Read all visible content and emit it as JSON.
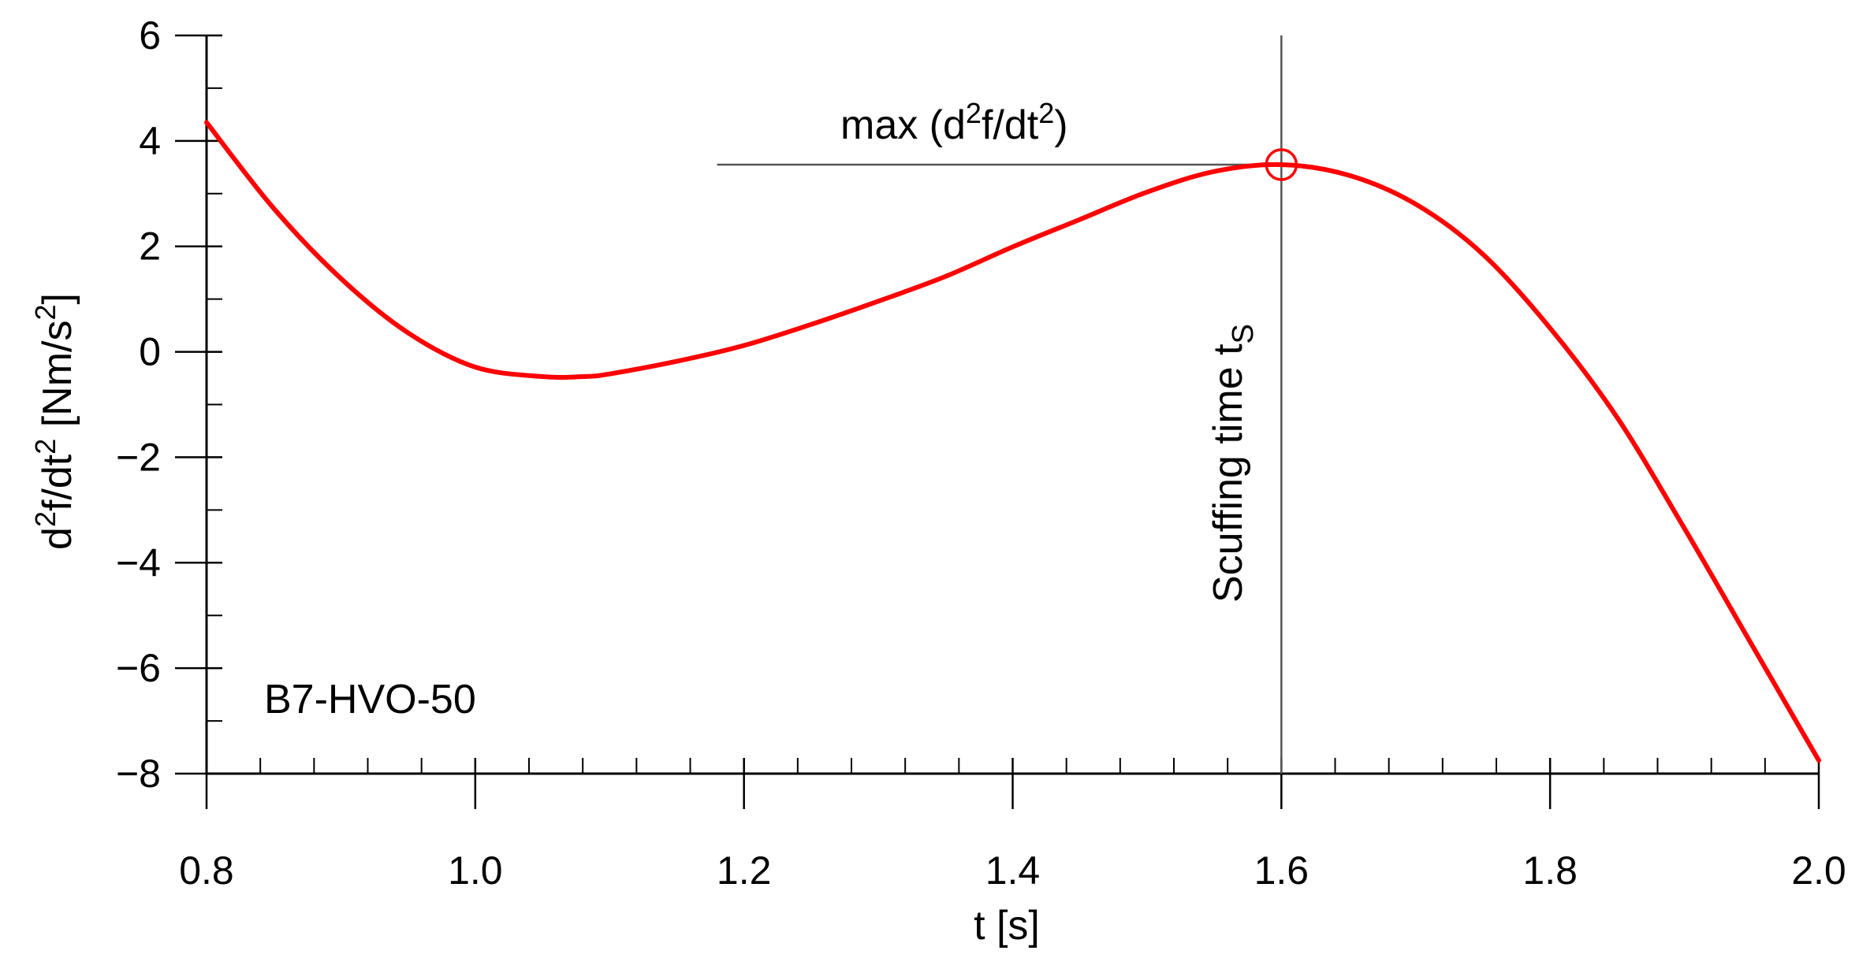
{
  "chart_data": {
    "type": "line",
    "title": "",
    "xlabel": "t [s]",
    "ylabel_parts": {
      "a": "d",
      "a_sup": "2",
      "b": "f/dt",
      "b_sup": "2",
      "c": " [Nm/s",
      "c_sup": "2",
      "d": "]"
    },
    "xlim": [
      0.8,
      2.0
    ],
    "ylim": [
      -8,
      6
    ],
    "x_ticks": [
      0.8,
      1.0,
      1.2,
      1.4,
      1.6,
      1.8,
      2.0
    ],
    "x_tick_labels": [
      "0.8",
      "1.0",
      "1.2",
      "1.4",
      "1.6",
      "1.8",
      "2.0"
    ],
    "y_ticks": [
      6,
      4,
      2,
      0,
      -2,
      -4,
      -6,
      -8
    ],
    "y_tick_labels": [
      "6",
      "4",
      "2",
      "0",
      "−2",
      "−4",
      "−6",
      "−8"
    ],
    "x_minor_step": 0.04,
    "y_minor_step": 1,
    "grid": false,
    "series": [
      {
        "color": "#ff0000",
        "x": [
          0.8,
          0.85,
          0.9,
          0.95,
          1.0,
          1.05,
          1.08,
          1.1,
          1.15,
          1.2,
          1.25,
          1.3,
          1.35,
          1.4,
          1.45,
          1.5,
          1.55,
          1.6,
          1.65,
          1.7,
          1.75,
          1.8,
          1.85,
          1.9,
          1.95,
          2.0
        ],
        "y": [
          4.35,
          2.72,
          1.39,
          0.36,
          -0.29,
          -0.47,
          -0.47,
          -0.42,
          -0.18,
          0.12,
          0.52,
          0.96,
          1.43,
          1.99,
          2.51,
          3.03,
          3.42,
          3.55,
          3.35,
          2.8,
          1.85,
          0.45,
          -1.25,
          -3.35,
          -5.55,
          -7.75
        ]
      }
    ],
    "marker": {
      "x": 1.6,
      "y": 3.55,
      "color": "#ff0000"
    },
    "vline": {
      "x": 1.6,
      "label": "Scuffing time t",
      "label_sub": "S"
    },
    "hline": {
      "y": 3.55,
      "x_start": 1.18,
      "x_end": 1.6,
      "label": "max (d",
      "label_sup1": "2",
      "label_mid": "f/dt",
      "label_sup2": "2",
      "label_end": ")"
    },
    "annotation": "B7-HVO-50"
  }
}
